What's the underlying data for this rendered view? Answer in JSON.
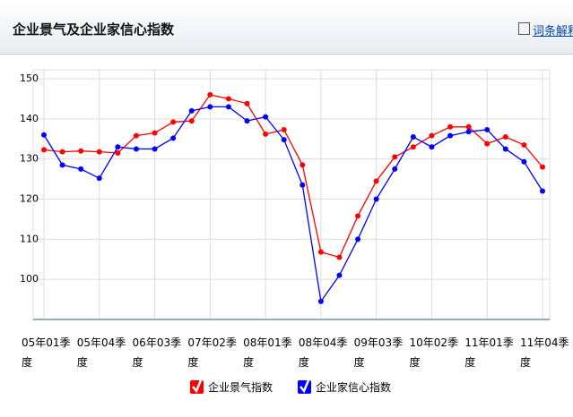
{
  "header": {
    "title": "企业景气及企业家信心指数",
    "link": "词条解释"
  },
  "chart_data": {
    "type": "line",
    "categories": [
      "05年01季度",
      null,
      null,
      "05年04季度",
      null,
      null,
      "06年03季度",
      null,
      null,
      "07年02季度",
      null,
      null,
      "08年01季度",
      null,
      null,
      "08年04季度",
      null,
      null,
      "09年03季度",
      null,
      null,
      "10年02季度",
      null,
      null,
      "11年01季度",
      null,
      null,
      "11年04季度"
    ],
    "series": [
      {
        "name": "企业景气指数",
        "color": "#ff0000",
        "values": [
          132.3,
          131.8,
          132,
          131.8,
          131.5,
          135.8,
          136.5,
          139.2,
          139.5,
          146,
          145,
          143.8,
          136.2,
          137.3,
          128.5,
          106.8,
          105.5,
          115.8,
          124.5,
          130.5,
          133,
          135.8,
          138,
          138,
          133.8,
          135.5,
          133.5,
          128
        ]
      },
      {
        "name": "企业家信心指数",
        "color": "#0000ff",
        "values": [
          136,
          128.5,
          127.5,
          125.2,
          133,
          132.5,
          132.5,
          135.2,
          142,
          143,
          143,
          139.5,
          140.5,
          134.8,
          123.5,
          94.5,
          101,
          110,
          120,
          127.5,
          135.5,
          133,
          135.8,
          136.8,
          137.3,
          132.5,
          129.3,
          122
        ]
      }
    ],
    "ylim": [
      90,
      150
    ],
    "yticks": [
      100,
      110,
      120,
      130,
      140,
      150
    ],
    "grid": true,
    "legend": "bottom"
  }
}
